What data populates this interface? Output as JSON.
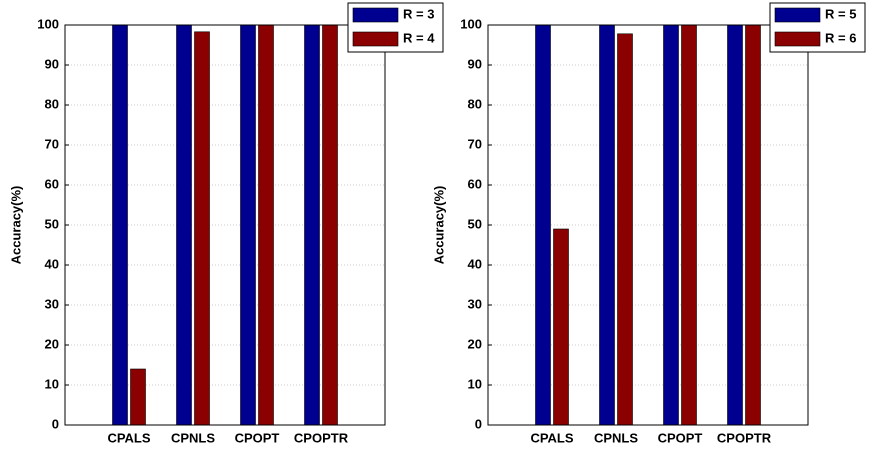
{
  "chart_data": [
    {
      "type": "bar",
      "ylabel": "Accuracy(%)",
      "categories": [
        "CPALS",
        "CPNLS",
        "CPOPT",
        "CPOPTR"
      ],
      "series": [
        {
          "name": "R = 3",
          "color": "#000090",
          "values": [
            100,
            100,
            100,
            100
          ]
        },
        {
          "name": "R = 4",
          "color": "#8b0000",
          "values": [
            14,
            98.3,
            100,
            100
          ]
        }
      ],
      "ylim": [
        0,
        100
      ],
      "yticks": [
        0,
        10,
        20,
        30,
        40,
        50,
        60,
        70,
        80,
        90,
        100
      ],
      "grid": true
    },
    {
      "type": "bar",
      "ylabel": "Accuracy(%)",
      "categories": [
        "CPALS",
        "CPNLS",
        "CPOPT",
        "CPOPTR"
      ],
      "series": [
        {
          "name": "R = 5",
          "color": "#000090",
          "values": [
            100,
            100,
            100,
            100
          ]
        },
        {
          "name": "R = 6",
          "color": "#8b0000",
          "values": [
            49,
            97.8,
            100,
            100
          ]
        }
      ],
      "ylim": [
        0,
        100
      ],
      "yticks": [
        0,
        10,
        20,
        30,
        40,
        50,
        60,
        70,
        80,
        90,
        100
      ],
      "grid": true
    }
  ]
}
